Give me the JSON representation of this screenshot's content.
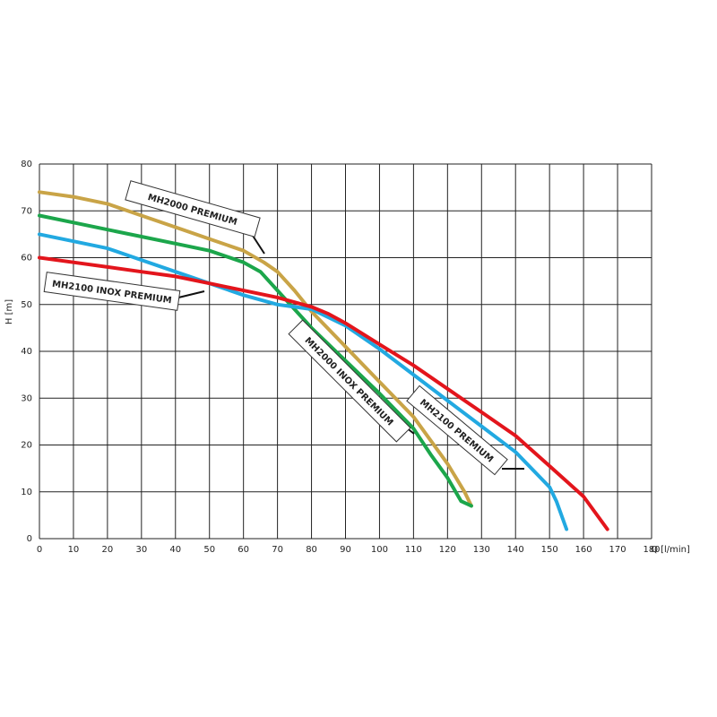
{
  "chart_data": {
    "type": "line",
    "x_label": "Q [l/min]",
    "y_label": "H [m]",
    "xlim": [
      0,
      180
    ],
    "xticks": [
      0,
      10,
      20,
      30,
      40,
      50,
      60,
      70,
      80,
      90,
      100,
      110,
      120,
      130,
      140,
      150,
      160,
      170,
      180
    ],
    "ylim": [
      0,
      80
    ],
    "yticks": [
      0,
      10,
      20,
      30,
      40,
      50,
      60,
      70,
      80
    ],
    "grid": true,
    "series": [
      {
        "name": "MH2000 PREMIUM",
        "color": "#c9a447",
        "x": [
          0,
          10,
          20,
          30,
          40,
          50,
          60,
          66,
          70,
          75,
          80,
          90,
          100,
          110,
          115,
          120,
          125,
          127
        ],
        "values": [
          74,
          73,
          71.5,
          69,
          66.5,
          64,
          61.5,
          59,
          57,
          53,
          48.5,
          41,
          33.5,
          26,
          21,
          16,
          10,
          7
        ]
      },
      {
        "name": "MH2000 INOX PREMIUM",
        "color": "#1ca64b",
        "x": [
          0,
          10,
          20,
          30,
          40,
          50,
          60,
          65,
          70,
          75,
          80,
          90,
          100,
          110,
          115,
          120,
          124,
          127
        ],
        "values": [
          69,
          67.5,
          66,
          64.5,
          63,
          61.5,
          59,
          57,
          53,
          49,
          45,
          38,
          31,
          23.5,
          18,
          13,
          8,
          7
        ]
      },
      {
        "name": "MH2100 PREMIUM",
        "color": "#22a9e1",
        "x": [
          0,
          10,
          20,
          30,
          40,
          50,
          60,
          70,
          80,
          90,
          100,
          110,
          120,
          130,
          140,
          150,
          152,
          155
        ],
        "values": [
          65,
          63.5,
          62,
          59.5,
          57,
          54.5,
          52,
          50,
          49,
          45.5,
          40.5,
          35,
          29.5,
          24,
          18.5,
          11,
          8,
          2
        ]
      },
      {
        "name": "MH2100 INOX PREMIUM",
        "color": "#e3151c",
        "x": [
          0,
          10,
          20,
          30,
          40,
          50,
          60,
          70,
          80,
          85,
          90,
          100,
          110,
          120,
          130,
          140,
          150,
          160,
          167
        ],
        "values": [
          60,
          59,
          58,
          57,
          56,
          54.5,
          53,
          51.5,
          49.5,
          48,
          46,
          41.5,
          37,
          32,
          27,
          22,
          15.5,
          9,
          2
        ]
      }
    ]
  }
}
